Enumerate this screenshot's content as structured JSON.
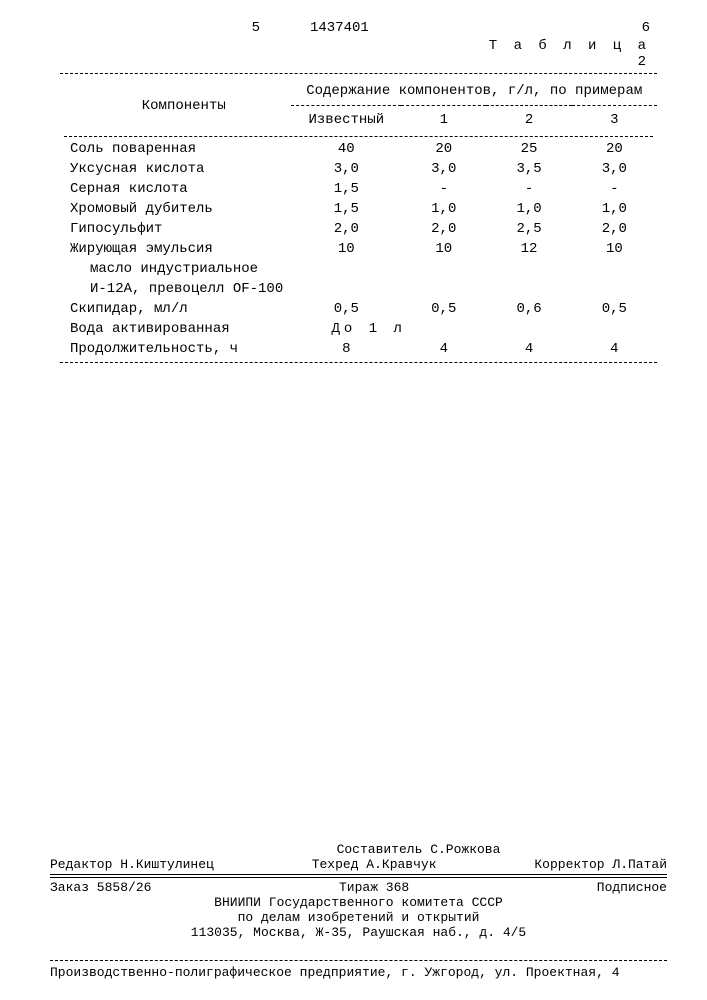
{
  "header": {
    "left_num": "5",
    "patent_num": "1437401",
    "right_num": "6",
    "table_label": "Т а б л и ц а 2"
  },
  "table": {
    "col_header_label": "Компоненты",
    "group_header": "Содержание компонентов, г/л, по примерам",
    "subcols": [
      "Известный",
      "1",
      "2",
      "3"
    ],
    "rows": [
      {
        "label": "Соль поваренная",
        "v": [
          "40",
          "20",
          "25",
          "20"
        ]
      },
      {
        "label": "Уксусная кислота",
        "v": [
          "3,0",
          "3,0",
          "3,5",
          "3,0"
        ]
      },
      {
        "label": "Серная кислота",
        "v": [
          "1,5",
          "-",
          "-",
          "-"
        ]
      },
      {
        "label": "Хромовый дубитель",
        "v": [
          "1,5",
          "1,0",
          "1,0",
          "1,0"
        ]
      },
      {
        "label": "Гипосульфит",
        "v": [
          "2,0",
          "2,0",
          "2,5",
          "2,0"
        ]
      },
      {
        "label": "Жирующая эмульсия",
        "sublines": [
          "масло индустриальное",
          "И-12А, превоцелл OF-100"
        ],
        "v": [
          "10",
          "10",
          "12",
          "10"
        ]
      },
      {
        "label": "Скипидар, мл/л",
        "v": [
          "0,5",
          "0,5",
          "0,6",
          "0,5"
        ]
      },
      {
        "label": "Вода активированная",
        "merged": "До 1 л"
      },
      {
        "label": "Продолжительность, ч",
        "v": [
          "8",
          "4",
          "4",
          "4"
        ]
      }
    ]
  },
  "footer": {
    "compiler": "Составитель С.Рожкова",
    "editor": "Редактор Н.Киштулинец",
    "techred": "Техред А.Кравчук",
    "corrector": "Корректор Л.Патай",
    "order": "Заказ 5858/26",
    "tirazh": "Тираж 368",
    "sign": "Подписное",
    "org1": "ВНИИПИ Государственного комитета СССР",
    "org2": "по делам изобретений и открытий",
    "addr": "113035, Москва, Ж-35, Раушская наб., д. 4/5",
    "printer": "Производственно-полиграфическое предприятие, г. Ужгород, ул. Проектная, 4"
  },
  "style": {
    "font_family": "Courier New",
    "font_size_pt": 10,
    "text_color": "#000000",
    "bg_color": "#ffffff",
    "dash_color": "#000000"
  }
}
